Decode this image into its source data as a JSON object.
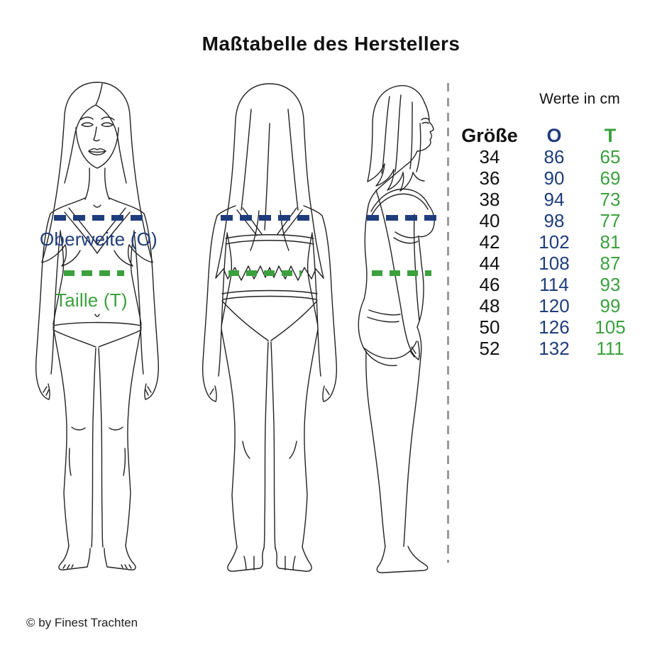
{
  "title": "Maßtabelle des Herstellers",
  "diagram": {
    "bust_label": "Oberweite (O)",
    "waist_label": "Taille (T)",
    "figures": [
      "front-view",
      "back-view",
      "side-view"
    ]
  },
  "table": {
    "caption": "Werte in cm",
    "columns": [
      {
        "label": "Größe"
      },
      {
        "label": "O"
      },
      {
        "label": "T"
      }
    ],
    "rows": [
      {
        "groesse": "34",
        "o": "86",
        "t": "65"
      },
      {
        "groesse": "36",
        "o": "90",
        "t": "69"
      },
      {
        "groesse": "38",
        "o": "94",
        "t": "73"
      },
      {
        "groesse": "40",
        "o": "98",
        "t": "77"
      },
      {
        "groesse": "42",
        "o": "102",
        "t": "81"
      },
      {
        "groesse": "44",
        "o": "108",
        "t": "87"
      },
      {
        "groesse": "46",
        "o": "114",
        "t": "93"
      },
      {
        "groesse": "48",
        "o": "120",
        "t": "99"
      },
      {
        "groesse": "50",
        "o": "126",
        "t": "105"
      },
      {
        "groesse": "52",
        "o": "132",
        "t": "111"
      }
    ]
  },
  "footer": {
    "copyright": "© by Finest Trachten"
  },
  "colors": {
    "bust_blue": "#1f3d7c",
    "waist_green": "#3ba13d",
    "separator_gray": "#9a9a9a",
    "line_art": "#222222",
    "text": "#111111"
  },
  "chart_data": {
    "type": "table",
    "title": "Maßtabelle des Herstellers",
    "subtitle": "Werte in cm",
    "columns": [
      "Größe",
      "O",
      "T"
    ],
    "column_meanings": {
      "O": "Oberweite (O)",
      "T": "Taille (T)"
    },
    "rows": [
      [
        34,
        86,
        65
      ],
      [
        36,
        90,
        69
      ],
      [
        38,
        94,
        73
      ],
      [
        40,
        98,
        77
      ],
      [
        42,
        102,
        81
      ],
      [
        44,
        108,
        87
      ],
      [
        46,
        114,
        93
      ],
      [
        48,
        120,
        99
      ],
      [
        50,
        126,
        105
      ],
      [
        52,
        132,
        111
      ]
    ]
  }
}
